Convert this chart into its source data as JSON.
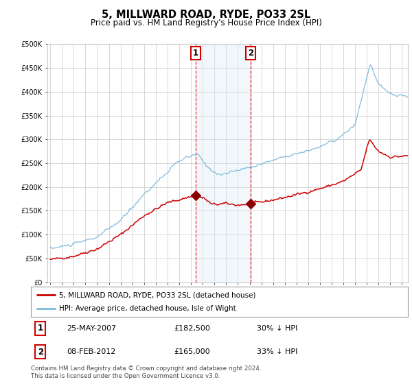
{
  "title": "5, MILLWARD ROAD, RYDE, PO33 2SL",
  "subtitle": "Price paid vs. HM Land Registry's House Price Index (HPI)",
  "legend_label_red": "5, MILLWARD ROAD, RYDE, PO33 2SL (detached house)",
  "legend_label_blue": "HPI: Average price, detached house, Isle of Wight",
  "annotation1_label": "1",
  "annotation1_date": "25-MAY-2007",
  "annotation1_price": "£182,500",
  "annotation1_hpi": "30% ↓ HPI",
  "annotation2_label": "2",
  "annotation2_date": "08-FEB-2012",
  "annotation2_price": "£165,000",
  "annotation2_hpi": "33% ↓ HPI",
  "footer": "Contains HM Land Registry data © Crown copyright and database right 2024.\nThis data is licensed under the Open Government Licence v3.0.",
  "sale1_year": 2007.38,
  "sale1_value": 182500,
  "sale2_year": 2012.08,
  "sale2_value": 165000,
  "hpi_color": "#7ab8d9",
  "property_color": "#cc0000",
  "highlight_color": "#daeaf5",
  "background_color": "#ffffff",
  "grid_color": "#c8c8c8",
  "ylim_max": 500000,
  "ylim_min": 0,
  "xlim_min": 1994.75,
  "xlim_max": 2025.5
}
